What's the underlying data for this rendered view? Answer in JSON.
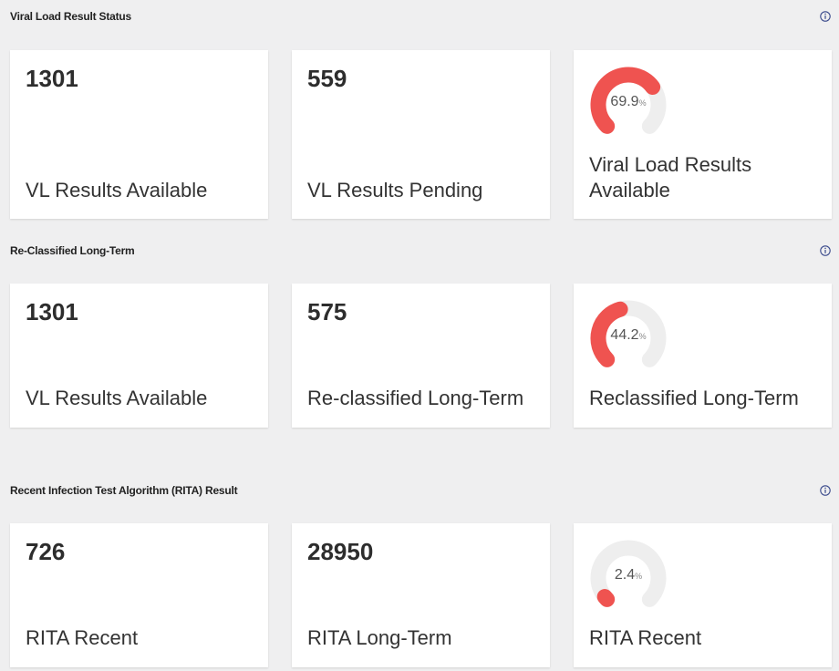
{
  "sections": [
    {
      "title": "Viral Load Result Status",
      "cards": [
        {
          "value": "1301",
          "label": "VL Results Available"
        },
        {
          "value": "559",
          "label": "VL Results Pending"
        },
        {
          "gauge_value": "69.9",
          "gauge_fraction": 0.699,
          "unit": "%",
          "label": "Viral Load Results Available"
        }
      ]
    },
    {
      "title": "Re-Classified Long-Term",
      "cards": [
        {
          "value": "1301",
          "label": "VL Results Available"
        },
        {
          "value": "575",
          "label": "Re-classified Long-Term"
        },
        {
          "gauge_value": "44.2",
          "gauge_fraction": 0.442,
          "unit": "%",
          "label": "Reclassified Long-Term"
        }
      ]
    },
    {
      "title": "Recent Infection Test Algorithm (RITA) Result",
      "cards": [
        {
          "value": "726",
          "label": "RITA Recent"
        },
        {
          "value": "28950",
          "label": "RITA Long-Term"
        },
        {
          "gauge_value": "2.4",
          "gauge_fraction": 0.024,
          "unit": "%",
          "label": "RITA Recent"
        }
      ]
    }
  ],
  "colors": {
    "accent": "#ef5350",
    "track": "#eeeeee"
  },
  "icons": {
    "info": "info-circle-icon"
  }
}
